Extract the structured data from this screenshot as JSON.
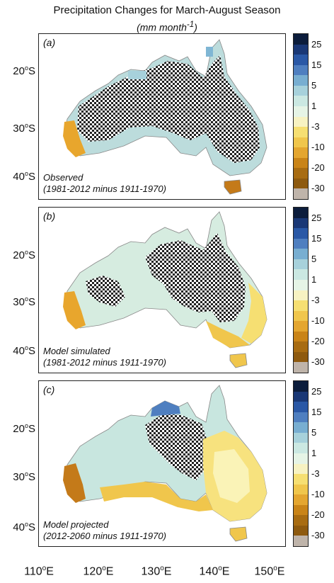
{
  "title": "Precipitation Changes for March-August Season",
  "subtitle_text": "(mm month",
  "subtitle_exp": "-1",
  "subtitle_close": ")",
  "panels": [
    {
      "label": "(a)",
      "caption_line1": "Observed",
      "caption_line2": "(1981-2012 minus 1911-1970)",
      "land_color": "#bcdcdc"
    },
    {
      "label": "(b)",
      "caption_line1": "Model simulated",
      "caption_line2": "(1981-2012 minus 1911-1970)",
      "land_color": "#d6ece0"
    },
    {
      "label": "(c)",
      "caption_line1": "Model projected",
      "caption_line2": "(2012-2060 minus 1911-1970)",
      "land_color": "#c8e6df"
    }
  ],
  "lat_labels": [
    "20",
    "30",
    "40"
  ],
  "lat_unit": "o",
  "lat_suffix": "S",
  "lon_labels": [
    "110",
    "120",
    "130",
    "140",
    "150"
  ],
  "lon_unit": "o",
  "lon_suffix": "E",
  "colorbar": {
    "labels": [
      "25",
      "15",
      "5",
      "1",
      "-3",
      "-10",
      "-20",
      "-30"
    ],
    "colors": [
      "#0c1d3c",
      "#1a3876",
      "#2a58a6",
      "#4f7fc0",
      "#78aed1",
      "#a7d1db",
      "#cbe8e2",
      "#e6f4e6",
      "#f7f2c2",
      "#f6df72",
      "#f0c64c",
      "#e4a630",
      "#c98418",
      "#a86c12",
      "#8e5a0f",
      "#bfb4aa"
    ]
  },
  "map_colors": {
    "wet": "#7fb6d4",
    "dry": "#e8a62d",
    "very_dry": "#c47a19",
    "yellow": "#f7e27e",
    "light_yellow": "#faf3b7",
    "checker_dark": "#222222"
  }
}
